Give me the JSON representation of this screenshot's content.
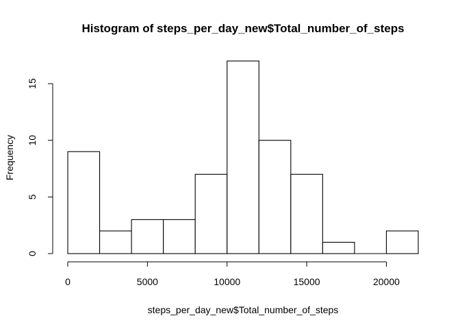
{
  "chart_data": {
    "type": "bar",
    "subtype": "histogram",
    "title": "Histogram of steps_per_day_new$Total_number_of_steps",
    "xlabel": "steps_per_day_new$Total_number_of_steps",
    "ylabel": "Frequency",
    "bins": [
      {
        "from": 0,
        "to": 2000,
        "count": 9
      },
      {
        "from": 2000,
        "to": 4000,
        "count": 2
      },
      {
        "from": 4000,
        "to": 6000,
        "count": 3
      },
      {
        "from": 6000,
        "to": 8000,
        "count": 3
      },
      {
        "from": 8000,
        "to": 10000,
        "count": 7
      },
      {
        "from": 10000,
        "to": 12000,
        "count": 17
      },
      {
        "from": 12000,
        "to": 14000,
        "count": 10
      },
      {
        "from": 14000,
        "to": 16000,
        "count": 7
      },
      {
        "from": 16000,
        "to": 18000,
        "count": 1
      },
      {
        "from": 18000,
        "to": 20000,
        "count": 0
      },
      {
        "from": 20000,
        "to": 22000,
        "count": 2
      }
    ],
    "xlim": [
      0,
      22000
    ],
    "ylim": [
      0,
      17
    ],
    "xticks": [
      0,
      5000,
      10000,
      15000,
      20000
    ],
    "yticks": [
      0,
      5,
      10,
      15
    ],
    "grid": false,
    "legend": "none",
    "colors": {
      "bar_fill": "#ffffff",
      "bar_stroke": "#000000"
    }
  }
}
